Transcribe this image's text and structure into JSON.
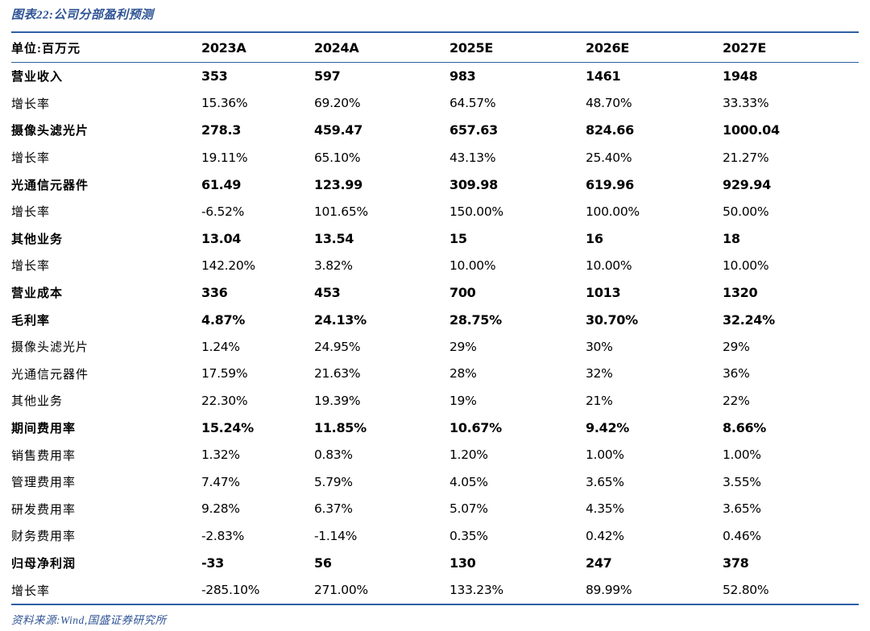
{
  "figure": {
    "title": "图表22:公司分部盈利预测",
    "source": "资料来源:Wind,国盛证券研究所"
  },
  "colors": {
    "accent": "#2F5496",
    "rule": "#2E5FA3",
    "text": "#000000",
    "background": "#FFFFFF"
  },
  "chart_data": {
    "type": "table",
    "unit_header": "单位:百万元",
    "columns": [
      "2023A",
      "2024A",
      "2025E",
      "2026E",
      "2027E"
    ],
    "rows": [
      {
        "label": "营业收入",
        "bold": true,
        "values": [
          "353",
          "597",
          "983",
          "1461",
          "1948"
        ]
      },
      {
        "label": "增长率",
        "bold": false,
        "values": [
          "15.36%",
          "69.20%",
          "64.57%",
          "48.70%",
          "33.33%"
        ]
      },
      {
        "label": "摄像头滤光片",
        "bold": true,
        "values": [
          "278.3",
          "459.47",
          "657.63",
          "824.66",
          "1000.04"
        ]
      },
      {
        "label": "增长率",
        "bold": false,
        "values": [
          "19.11%",
          "65.10%",
          "43.13%",
          "25.40%",
          "21.27%"
        ]
      },
      {
        "label": "光通信元器件",
        "bold": true,
        "values": [
          "61.49",
          "123.99",
          "309.98",
          "619.96",
          "929.94"
        ]
      },
      {
        "label": "增长率",
        "bold": false,
        "values": [
          "-6.52%",
          "101.65%",
          "150.00%",
          "100.00%",
          "50.00%"
        ]
      },
      {
        "label": "其他业务",
        "bold": true,
        "values": [
          "13.04",
          "13.54",
          "15",
          "16",
          "18"
        ]
      },
      {
        "label": "增长率",
        "bold": false,
        "values": [
          "142.20%",
          "3.82%",
          "10.00%",
          "10.00%",
          "10.00%"
        ]
      },
      {
        "label": "营业成本",
        "bold": true,
        "values": [
          "336",
          "453",
          "700",
          "1013",
          "1320"
        ]
      },
      {
        "label": "毛利率",
        "bold": true,
        "values": [
          "4.87%",
          "24.13%",
          "28.75%",
          "30.70%",
          "32.24%"
        ]
      },
      {
        "label": "摄像头滤光片",
        "bold": false,
        "values": [
          "1.24%",
          "24.95%",
          "29%",
          "30%",
          "29%"
        ]
      },
      {
        "label": "光通信元器件",
        "bold": false,
        "values": [
          "17.59%",
          "21.63%",
          "28%",
          "32%",
          "36%"
        ]
      },
      {
        "label": "其他业务",
        "bold": false,
        "values": [
          "22.30%",
          "19.39%",
          "19%",
          "21%",
          "22%"
        ]
      },
      {
        "label": "期间费用率",
        "bold": true,
        "values": [
          "15.24%",
          "11.85%",
          "10.67%",
          "9.42%",
          "8.66%"
        ]
      },
      {
        "label": "销售费用率",
        "bold": false,
        "values": [
          "1.32%",
          "0.83%",
          "1.20%",
          "1.00%",
          "1.00%"
        ]
      },
      {
        "label": "管理费用率",
        "bold": false,
        "values": [
          "7.47%",
          "5.79%",
          "4.05%",
          "3.65%",
          "3.55%"
        ]
      },
      {
        "label": "研发费用率",
        "bold": false,
        "values": [
          "9.28%",
          "6.37%",
          "5.07%",
          "4.35%",
          "3.65%"
        ]
      },
      {
        "label": "财务费用率",
        "bold": false,
        "values": [
          "-2.83%",
          "-1.14%",
          "0.35%",
          "0.42%",
          "0.46%"
        ]
      },
      {
        "label": "归母净利润",
        "bold": true,
        "values": [
          "-33",
          "56",
          "130",
          "247",
          "378"
        ]
      },
      {
        "label": "增长率",
        "bold": false,
        "values": [
          "-285.10%",
          "271.00%",
          "133.23%",
          "89.99%",
          "52.80%"
        ]
      }
    ]
  }
}
